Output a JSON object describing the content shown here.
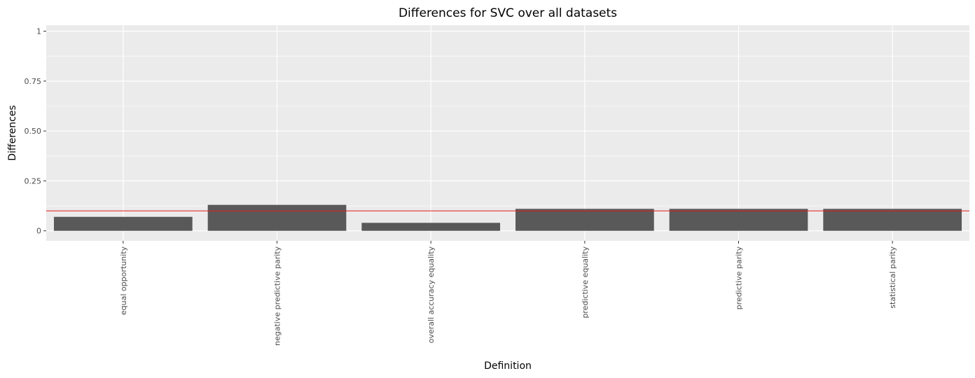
{
  "chart_data": {
    "type": "bar",
    "title": "Differences for SVC over all datasets",
    "xlabel": "Definition",
    "ylabel": "Differences",
    "categories": [
      "equal opportunity",
      "negative predictive parity",
      "overall accuracy equality",
      "predictive equality",
      "predictive parity",
      "statistical parity"
    ],
    "values": [
      0.07,
      0.13,
      0.04,
      0.11,
      0.11,
      0.11
    ],
    "ylim": [
      -0.05,
      1.03
    ],
    "yticks": [
      0,
      0.25,
      0.5,
      0.75,
      1
    ],
    "ytick_labels": [
      "0",
      "0.25",
      "0.50",
      "0.75",
      "1"
    ],
    "reference_line": {
      "y": 0.1,
      "color": "#e41a1c"
    },
    "bar_color": "#595959",
    "panel_background": "#ebebeb",
    "grid_color": "#ffffff",
    "grid": true,
    "legend": "none",
    "x_tick_rotation": "vertical"
  }
}
